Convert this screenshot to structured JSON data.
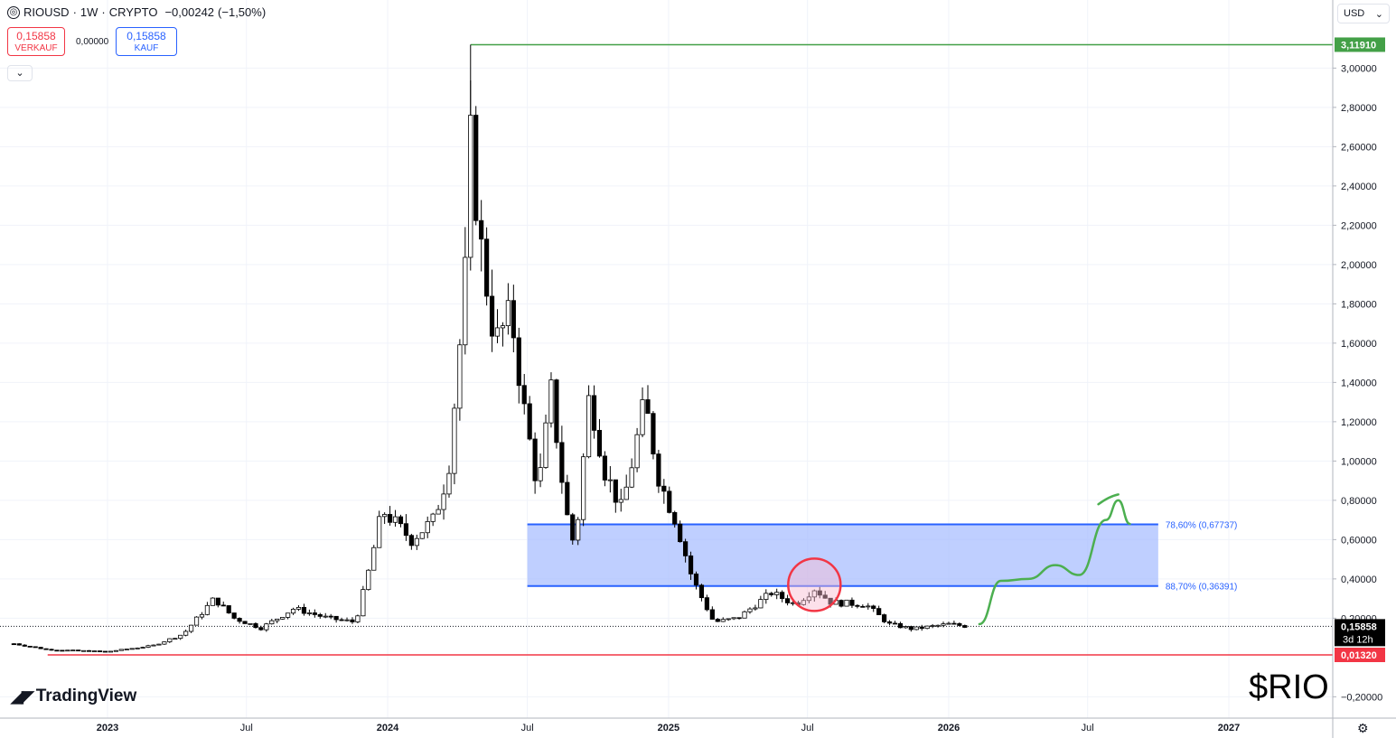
{
  "header": {
    "symbol": "RIOUSD",
    "interval": "1W",
    "exchange": "CRYPTO",
    "separator": "·",
    "change": "−0,00242",
    "change_pct": "(−1,50%)"
  },
  "trade": {
    "sell_price": "0,15858",
    "sell_label": "VERKAUF",
    "spread": "0,00000",
    "buy_price": "0,15858",
    "buy_label": "KAUF"
  },
  "currency": {
    "label": "USD",
    "chevron": "⌄"
  },
  "branding": {
    "name": "TradingView",
    "ticker": "$RIO"
  },
  "colors": {
    "up": "#000000",
    "down": "#000000",
    "grid": "#f0f3fa",
    "zone_fill": "#aabfff",
    "zone_line": "#2962ff",
    "high_line": "#43a047",
    "low_line": "#f23645",
    "circle": "#f23645",
    "drawing": "#4caf50"
  },
  "chart_data": {
    "type": "candlestick",
    "y_axis": {
      "min": -0.2,
      "max": 3.12,
      "ticks": [
        3.0,
        2.8,
        2.6,
        2.4,
        2.2,
        2.0,
        1.8,
        1.6,
        1.4,
        1.2,
        1.0,
        0.8,
        0.6,
        0.4,
        0.2,
        -0.2
      ],
      "tick_labels": [
        "3,00000",
        "2,80000",
        "2,60000",
        "2,40000",
        "2,20000",
        "2,00000",
        "1,80000",
        "1,60000",
        "1,40000",
        "1,20000",
        "1,00000",
        "0,80000",
        "0,60000",
        "0,40000",
        "0,20000",
        "−0,20000"
      ]
    },
    "x_axis": {
      "ticks": [
        "2023",
        "Jul",
        "2024",
        "Jul",
        "2025",
        "Jul",
        "2026",
        "Jul",
        "2027"
      ],
      "tick_dates": [
        "2023-01-01",
        "2023-07-01",
        "2024-01-01",
        "2024-07-01",
        "2025-01-01",
        "2025-07-01",
        "2026-01-01",
        "2026-07-01",
        "2027-01-01"
      ],
      "bold": [
        true,
        false,
        true,
        false,
        true,
        false,
        true,
        false,
        true
      ]
    },
    "anchors": [
      {
        "date": "2022-09-01",
        "close": 0.07
      },
      {
        "date": "2022-10-15",
        "close": 0.04
      },
      {
        "date": "2023-01-01",
        "close": 0.03
      },
      {
        "date": "2023-03-01",
        "close": 0.06
      },
      {
        "date": "2023-04-10",
        "close": 0.12
      },
      {
        "date": "2023-05-20",
        "close": 0.3
      },
      {
        "date": "2023-06-15",
        "close": 0.2
      },
      {
        "date": "2023-07-20",
        "close": 0.15
      },
      {
        "date": "2023-09-01",
        "close": 0.25
      },
      {
        "date": "2023-10-15",
        "close": 0.2
      },
      {
        "date": "2023-11-20",
        "close": 0.18
      },
      {
        "date": "2023-12-05",
        "close": 0.4
      },
      {
        "date": "2023-12-25",
        "close": 0.75
      },
      {
        "date": "2024-02-01",
        "close": 0.6
      },
      {
        "date": "2024-03-01",
        "close": 0.7
      },
      {
        "date": "2024-03-20",
        "close": 0.95
      },
      {
        "date": "2024-04-10",
        "close": 1.85
      },
      {
        "date": "2024-04-18",
        "close": 2.62
      },
      {
        "date": "2024-05-01",
        "close": 2.1
      },
      {
        "date": "2024-05-20",
        "close": 1.6
      },
      {
        "date": "2024-06-10",
        "close": 1.75
      },
      {
        "date": "2024-06-25",
        "close": 1.3
      },
      {
        "date": "2024-07-15",
        "close": 0.85
      },
      {
        "date": "2024-08-01",
        "close": 1.35
      },
      {
        "date": "2024-08-20",
        "close": 0.75
      },
      {
        "date": "2024-09-01",
        "close": 0.55
      },
      {
        "date": "2024-09-20",
        "close": 1.35
      },
      {
        "date": "2024-10-10",
        "close": 0.95
      },
      {
        "date": "2024-11-01",
        "close": 0.75
      },
      {
        "date": "2024-12-01",
        "close": 1.3
      },
      {
        "date": "2024-12-20",
        "close": 0.9
      },
      {
        "date": "2025-01-10",
        "close": 0.7
      },
      {
        "date": "2025-02-01",
        "close": 0.4
      },
      {
        "date": "2025-03-01",
        "close": 0.18
      },
      {
        "date": "2025-04-01",
        "close": 0.2
      },
      {
        "date": "2025-05-15",
        "close": 0.33
      },
      {
        "date": "2025-06-15",
        "close": 0.27
      },
      {
        "date": "2025-07-10",
        "close": 0.35
      },
      {
        "date": "2025-08-01",
        "close": 0.28
      },
      {
        "date": "2025-09-15",
        "close": 0.27
      },
      {
        "date": "2025-10-15",
        "close": 0.17
      },
      {
        "date": "2025-11-15",
        "close": 0.145
      },
      {
        "date": "2026-01-01",
        "close": 0.17
      },
      {
        "date": "2026-01-25",
        "close": 0.1586
      }
    ],
    "all_time_high": {
      "value": 3.1191,
      "label": "3,11910"
    },
    "low_level": {
      "value": 0.0132,
      "label": "0,01320"
    },
    "last_price": {
      "value": 0.15858,
      "label": "0,15858",
      "countdown": "3d 12h"
    },
    "fib_zone": {
      "start": "2024-07-01",
      "end": "2026-10-01",
      "upper": {
        "value": 0.67737,
        "label": "78,60% (0,67737)"
      },
      "lower": {
        "value": 0.36391,
        "label": "88,70% (0,36391)"
      }
    },
    "highlight_circle": {
      "date": "2025-07-10",
      "value": 0.37
    },
    "projection": [
      {
        "date": "2026-02-10",
        "value": 0.17
      },
      {
        "date": "2026-03-10",
        "value": 0.39
      },
      {
        "date": "2026-04-15",
        "value": 0.4
      },
      {
        "date": "2026-05-20",
        "value": 0.47
      },
      {
        "date": "2026-06-20",
        "value": 0.42
      },
      {
        "date": "2026-07-25",
        "value": 0.7
      },
      {
        "date": "2026-08-10",
        "value": 0.8
      },
      {
        "date": "2026-08-25",
        "value": 0.68
      }
    ],
    "projection_hook": [
      {
        "date": "2026-07-15",
        "value": 0.78
      },
      {
        "date": "2026-08-10",
        "value": 0.83
      }
    ]
  }
}
